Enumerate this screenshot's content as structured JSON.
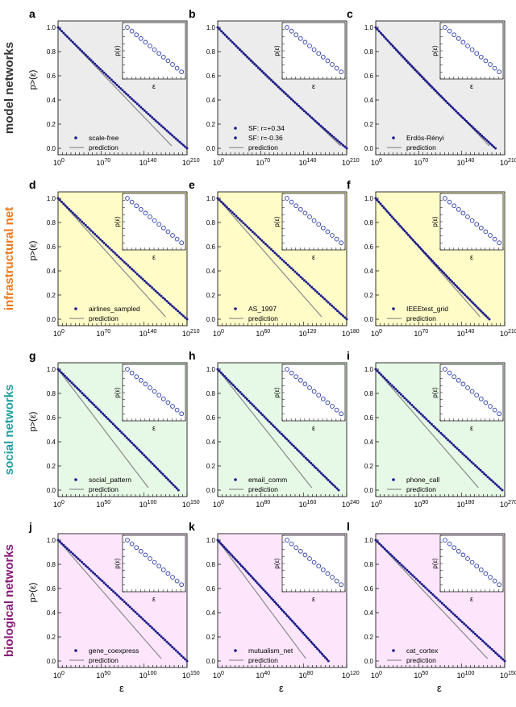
{
  "colors": {
    "model": "#ececec",
    "infra": "#fffcc8",
    "social": "#e6f8e6",
    "bio": "#fde6fb",
    "points": "#1a1a8a",
    "prediction": "#909090",
    "row_label_model": "#333333",
    "row_label_infra": "#f07818",
    "row_label_social": "#20a0a0",
    "row_label_bio": "#8a1a7a"
  },
  "row_labels": [
    "model networks",
    "infrastructural net",
    "social networks",
    "biological networks"
  ],
  "y_axis_label": "p>(ε)",
  "x_axis_label": "ε",
  "inset": {
    "ylabel": "p(ε)",
    "xlabel": "ε"
  },
  "y_ticks": [
    "0.0",
    "0.2",
    "0.4",
    "0.6",
    "0.8",
    "1.0"
  ],
  "chart_data": [
    {
      "panel": "a",
      "type": "scatter",
      "row": 0,
      "col": 0,
      "x_ticks": [
        "0",
        "70",
        "140",
        "210"
      ],
      "legend": [
        "scale-free",
        "prediction"
      ],
      "xlim": [
        0,
        210
      ],
      "ylim": [
        0,
        1
      ],
      "data_end": 210,
      "pred_end": 185,
      "tail": 0.06
    },
    {
      "panel": "b",
      "type": "scatter",
      "row": 0,
      "col": 1,
      "x_ticks": [
        "0",
        "70",
        "140",
        "210"
      ],
      "legend": [
        "SF: r=+0.34",
        "SF: r=-0.36",
        "prediction"
      ],
      "xlim": [
        0,
        210
      ],
      "ylim": [
        0,
        1
      ],
      "data_end": 210,
      "pred_end": 200,
      "tail": 0.05
    },
    {
      "panel": "c",
      "type": "scatter",
      "row": 0,
      "col": 2,
      "x_ticks": [
        "0",
        "70",
        "140",
        "210"
      ],
      "legend": [
        "Erdös-Rényi",
        "prediction"
      ],
      "xlim": [
        0,
        210
      ],
      "ylim": [
        0,
        1
      ],
      "data_end": 195,
      "pred_end": 185,
      "tail": 0.04
    },
    {
      "panel": "d",
      "type": "scatter",
      "row": 1,
      "col": 0,
      "x_ticks": [
        "0",
        "70",
        "140",
        "210"
      ],
      "legend": [
        "airlines_sampled",
        "prediction"
      ],
      "xlim": [
        0,
        210
      ],
      "ylim": [
        0,
        1
      ],
      "data_end": 210,
      "pred_end": 175,
      "tail": 0.08
    },
    {
      "panel": "e",
      "type": "scatter",
      "row": 1,
      "col": 1,
      "x_ticks": [
        "0",
        "60",
        "120",
        "180"
      ],
      "legend": [
        "AS_1997",
        "prediction"
      ],
      "xlim": [
        0,
        180
      ],
      "ylim": [
        0,
        1
      ],
      "data_end": 180,
      "pred_end": 145,
      "tail": 0.1
    },
    {
      "panel": "f",
      "type": "scatter",
      "row": 1,
      "col": 2,
      "x_ticks": [
        "0",
        "70",
        "140",
        "210"
      ],
      "legend": [
        "IEEEtest_grid",
        "prediction"
      ],
      "xlim": [
        0,
        210
      ],
      "ylim": [
        0,
        1
      ],
      "data_end": 185,
      "pred_end": 170,
      "tail": 0.06
    },
    {
      "panel": "g",
      "type": "scatter",
      "row": 2,
      "col": 0,
      "x_ticks": [
        "0",
        "50",
        "100",
        "150"
      ],
      "legend": [
        "social_pattern",
        "prediction"
      ],
      "xlim": [
        0,
        150
      ],
      "ylim": [
        0,
        1
      ],
      "data_end": 140,
      "pred_end": 105,
      "tail": 0.14
    },
    {
      "panel": "h",
      "type": "scatter",
      "row": 2,
      "col": 1,
      "x_ticks": [
        "0",
        "80",
        "160",
        "240"
      ],
      "legend": [
        "email_comm",
        "prediction"
      ],
      "xlim": [
        0,
        240
      ],
      "ylim": [
        0,
        1
      ],
      "data_end": 225,
      "pred_end": 175,
      "tail": 0.1
    },
    {
      "panel": "i",
      "type": "scatter",
      "row": 2,
      "col": 2,
      "x_ticks": [
        "0",
        "90",
        "180",
        "270"
      ],
      "legend": [
        "phone_call",
        "prediction"
      ],
      "xlim": [
        0,
        270
      ],
      "ylim": [
        0,
        1
      ],
      "data_end": 265,
      "pred_end": 215,
      "tail": 0.08
    },
    {
      "panel": "j",
      "type": "scatter",
      "row": 3,
      "col": 0,
      "x_ticks": [
        "0",
        "50",
        "100",
        "150"
      ],
      "legend": [
        "gene_coexpress",
        "prediction"
      ],
      "xlim": [
        0,
        150
      ],
      "ylim": [
        0,
        1
      ],
      "data_end": 150,
      "pred_end": 120,
      "tail": 0.14
    },
    {
      "panel": "k",
      "type": "scatter",
      "row": 3,
      "col": 1,
      "x_ticks": [
        "0",
        "40",
        "80",
        "120"
      ],
      "legend": [
        "mutualism_net",
        "prediction"
      ],
      "xlim": [
        0,
        120
      ],
      "ylim": [
        0,
        1
      ],
      "data_end": 103,
      "pred_end": 82,
      "tail": 0.14
    },
    {
      "panel": "l",
      "type": "scatter",
      "row": 3,
      "col": 2,
      "x_ticks": [
        "0",
        "50",
        "100",
        "150"
      ],
      "legend": [
        "cat_cortex",
        "prediction"
      ],
      "xlim": [
        0,
        150
      ],
      "ylim": [
        0,
        1
      ],
      "data_end": 150,
      "pred_end": 130,
      "tail": 0.1
    }
  ]
}
